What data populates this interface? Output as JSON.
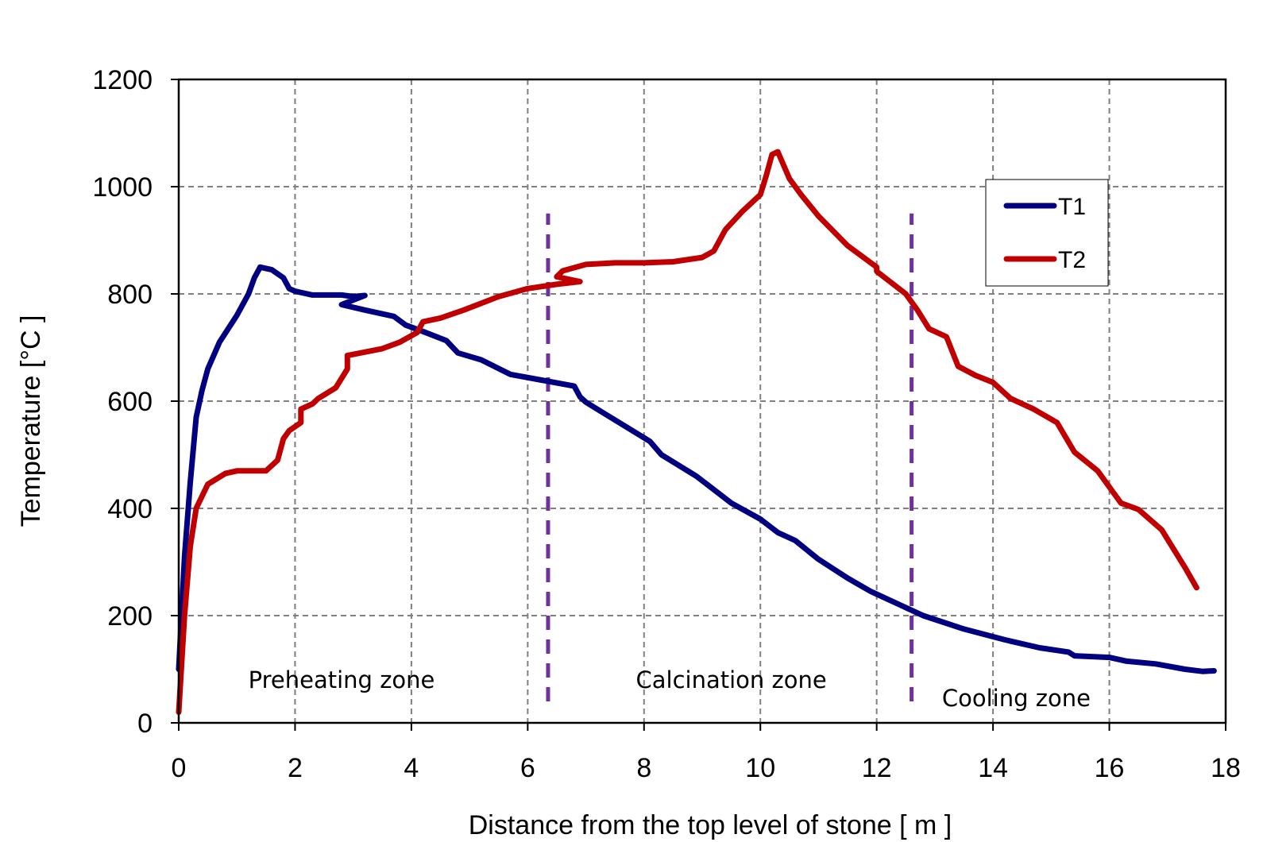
{
  "chart_data": {
    "type": "line",
    "title": "",
    "xlabel": "Distance from the top level of stone  [ m ]",
    "ylabel": "Temperature  [°C ]",
    "xlim": [
      0,
      18
    ],
    "ylim": [
      0,
      1200
    ],
    "x_ticks": [
      "0",
      "2",
      "4",
      "6",
      "8",
      "10",
      "12",
      "14",
      "16",
      "18"
    ],
    "y_ticks": [
      "0",
      "200",
      "400",
      "600",
      "800",
      "1000",
      "1200"
    ],
    "grid": true,
    "grid_style": "dashed",
    "legend_position": "top-right",
    "colors": {
      "T1": "#000080",
      "T2": "#C00000",
      "zone_divider": "#7030A0",
      "grid": "#808080"
    },
    "series": [
      {
        "name": "T1",
        "x": [
          0.0,
          0.1,
          0.2,
          0.3,
          0.4,
          0.5,
          0.7,
          1.0,
          1.2,
          1.3,
          1.4,
          1.6,
          1.8,
          1.9,
          2.0,
          2.3,
          2.8,
          3.0,
          3.2,
          2.8,
          3.2,
          3.7,
          3.9,
          4.2,
          4.6,
          4.8,
          5.2,
          5.7,
          6.2,
          6.8,
          6.9,
          7.0,
          7.3,
          7.8,
          8.1,
          8.3,
          8.9,
          9.5,
          10.0,
          10.3,
          10.6,
          11.0,
          11.5,
          11.9,
          12.4,
          12.8,
          13.5,
          14.2,
          14.8,
          15.3,
          15.4,
          16.0,
          16.3,
          16.8,
          17.3,
          17.6,
          17.8
        ],
        "values": [
          100,
          310,
          450,
          570,
          620,
          660,
          710,
          760,
          800,
          830,
          850,
          845,
          830,
          810,
          805,
          798,
          798,
          795,
          797,
          780,
          770,
          758,
          742,
          730,
          713,
          690,
          677,
          650,
          640,
          628,
          608,
          598,
          578,
          545,
          525,
          500,
          460,
          410,
          380,
          355,
          340,
          305,
          270,
          245,
          220,
          200,
          175,
          155,
          140,
          132,
          125,
          122,
          115,
          110,
          100,
          96,
          97
        ]
      },
      {
        "name": "T2",
        "x": [
          0.0,
          0.1,
          0.2,
          0.3,
          0.5,
          0.8,
          1.0,
          1.5,
          1.7,
          1.8,
          1.9,
          2.1,
          2.1,
          2.3,
          2.4,
          2.7,
          2.9,
          2.9,
          3.5,
          3.8,
          4.1,
          4.2,
          4.5,
          4.9,
          5.5,
          6.0,
          6.5,
          6.9,
          6.5,
          6.6,
          7.0,
          7.5,
          8.0,
          8.5,
          9.0,
          9.2,
          9.4,
          9.7,
          10.0,
          10.1,
          10.2,
          10.3,
          10.4,
          10.5,
          10.7,
          11.0,
          11.5,
          12.0,
          12.0,
          12.5,
          12.7,
          12.9,
          13.2,
          13.4,
          13.7,
          14.0,
          14.3,
          14.7,
          15.1,
          15.4,
          15.8,
          16.2,
          16.5,
          16.9,
          17.3,
          17.5
        ],
        "values": [
          20,
          200,
          330,
          400,
          445,
          465,
          470,
          470,
          490,
          530,
          545,
          560,
          585,
          595,
          605,
          625,
          660,
          685,
          698,
          710,
          728,
          748,
          755,
          770,
          795,
          810,
          818,
          823,
          832,
          843,
          855,
          858,
          858,
          860,
          868,
          880,
          920,
          955,
          985,
          1020,
          1060,
          1065,
          1040,
          1015,
          985,
          945,
          890,
          850,
          842,
          800,
          770,
          735,
          720,
          665,
          648,
          635,
          605,
          585,
          560,
          505,
          470,
          410,
          398,
          360,
          290,
          252
        ]
      }
    ],
    "zone_dividers_x": [
      6.35,
      12.6
    ],
    "zone_dividers_y": [
      40,
      950
    ],
    "annotations": [
      {
        "text": "Preheating zone",
        "x": 2.8,
        "y": 80
      },
      {
        "text": "Calcination zone",
        "x": 9.5,
        "y": 80
      },
      {
        "text": "Cooling zone",
        "x": 14.4,
        "y": 46
      }
    ]
  }
}
